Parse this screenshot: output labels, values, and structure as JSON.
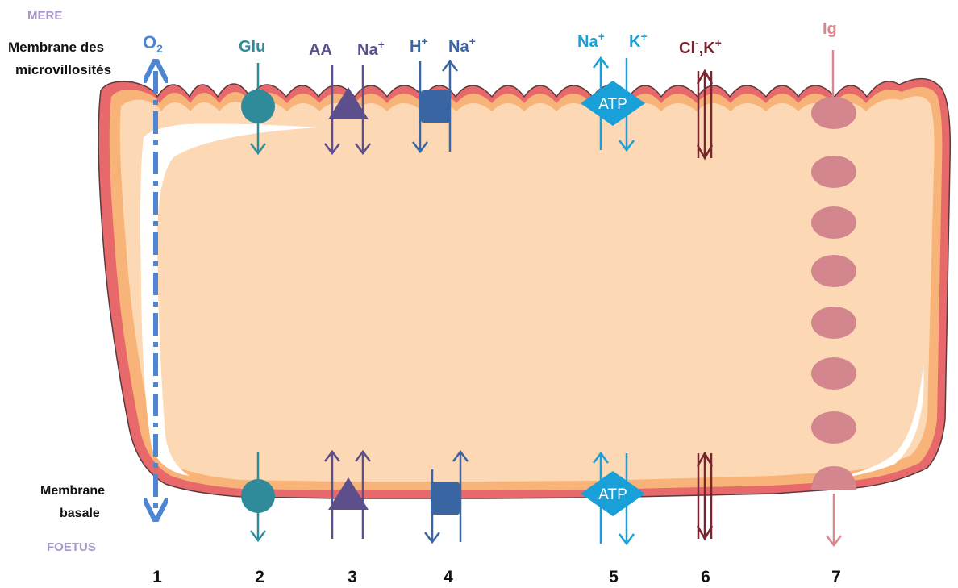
{
  "labels": {
    "mother": "MERE",
    "fetus": "FOETUS",
    "microvilli_membrane_line1": "Membrane des",
    "microvilli_membrane_line2": "microvillosités",
    "basal_membrane_line1": "Membrane",
    "basal_membrane_line2": "basale"
  },
  "transports": [
    {
      "number": "1",
      "substance": "O",
      "subscript": "2",
      "color": "#4f86d3"
    },
    {
      "number": "2",
      "substance": "Glu",
      "color": "#2f8a99"
    },
    {
      "number": "3",
      "substance": "AA",
      "substance_b": "Na",
      "substance_b_sup": "+",
      "color": "#5d4e8c"
    },
    {
      "number": "4",
      "substance": "H",
      "substance_sup": "+",
      "substance_b": "Na",
      "substance_b_sup": "+",
      "color": "#3a65a3"
    },
    {
      "number": "5",
      "substance": "Na",
      "substance_sup": "+",
      "substance_b": "K",
      "substance_b_sup": "+",
      "pump_label_top": "ATP",
      "pump_label_bottom": "ATP",
      "color": "#1aa0d8"
    },
    {
      "number": "6",
      "substance": "Cl",
      "substance_sup": "-",
      "substance_sep": ",K",
      "substance_sep_sup": "+",
      "color": "#7a2430"
    },
    {
      "number": "7",
      "substance": "Ig",
      "color": "#d9888f"
    }
  ],
  "colors": {
    "cell_fill": "#fcd9b4",
    "inner_membrane": "#f7b378",
    "outer_membrane": "#e8696c",
    "mother_fetus_text": "#a997c9",
    "vesicle": "#d4868f"
  }
}
